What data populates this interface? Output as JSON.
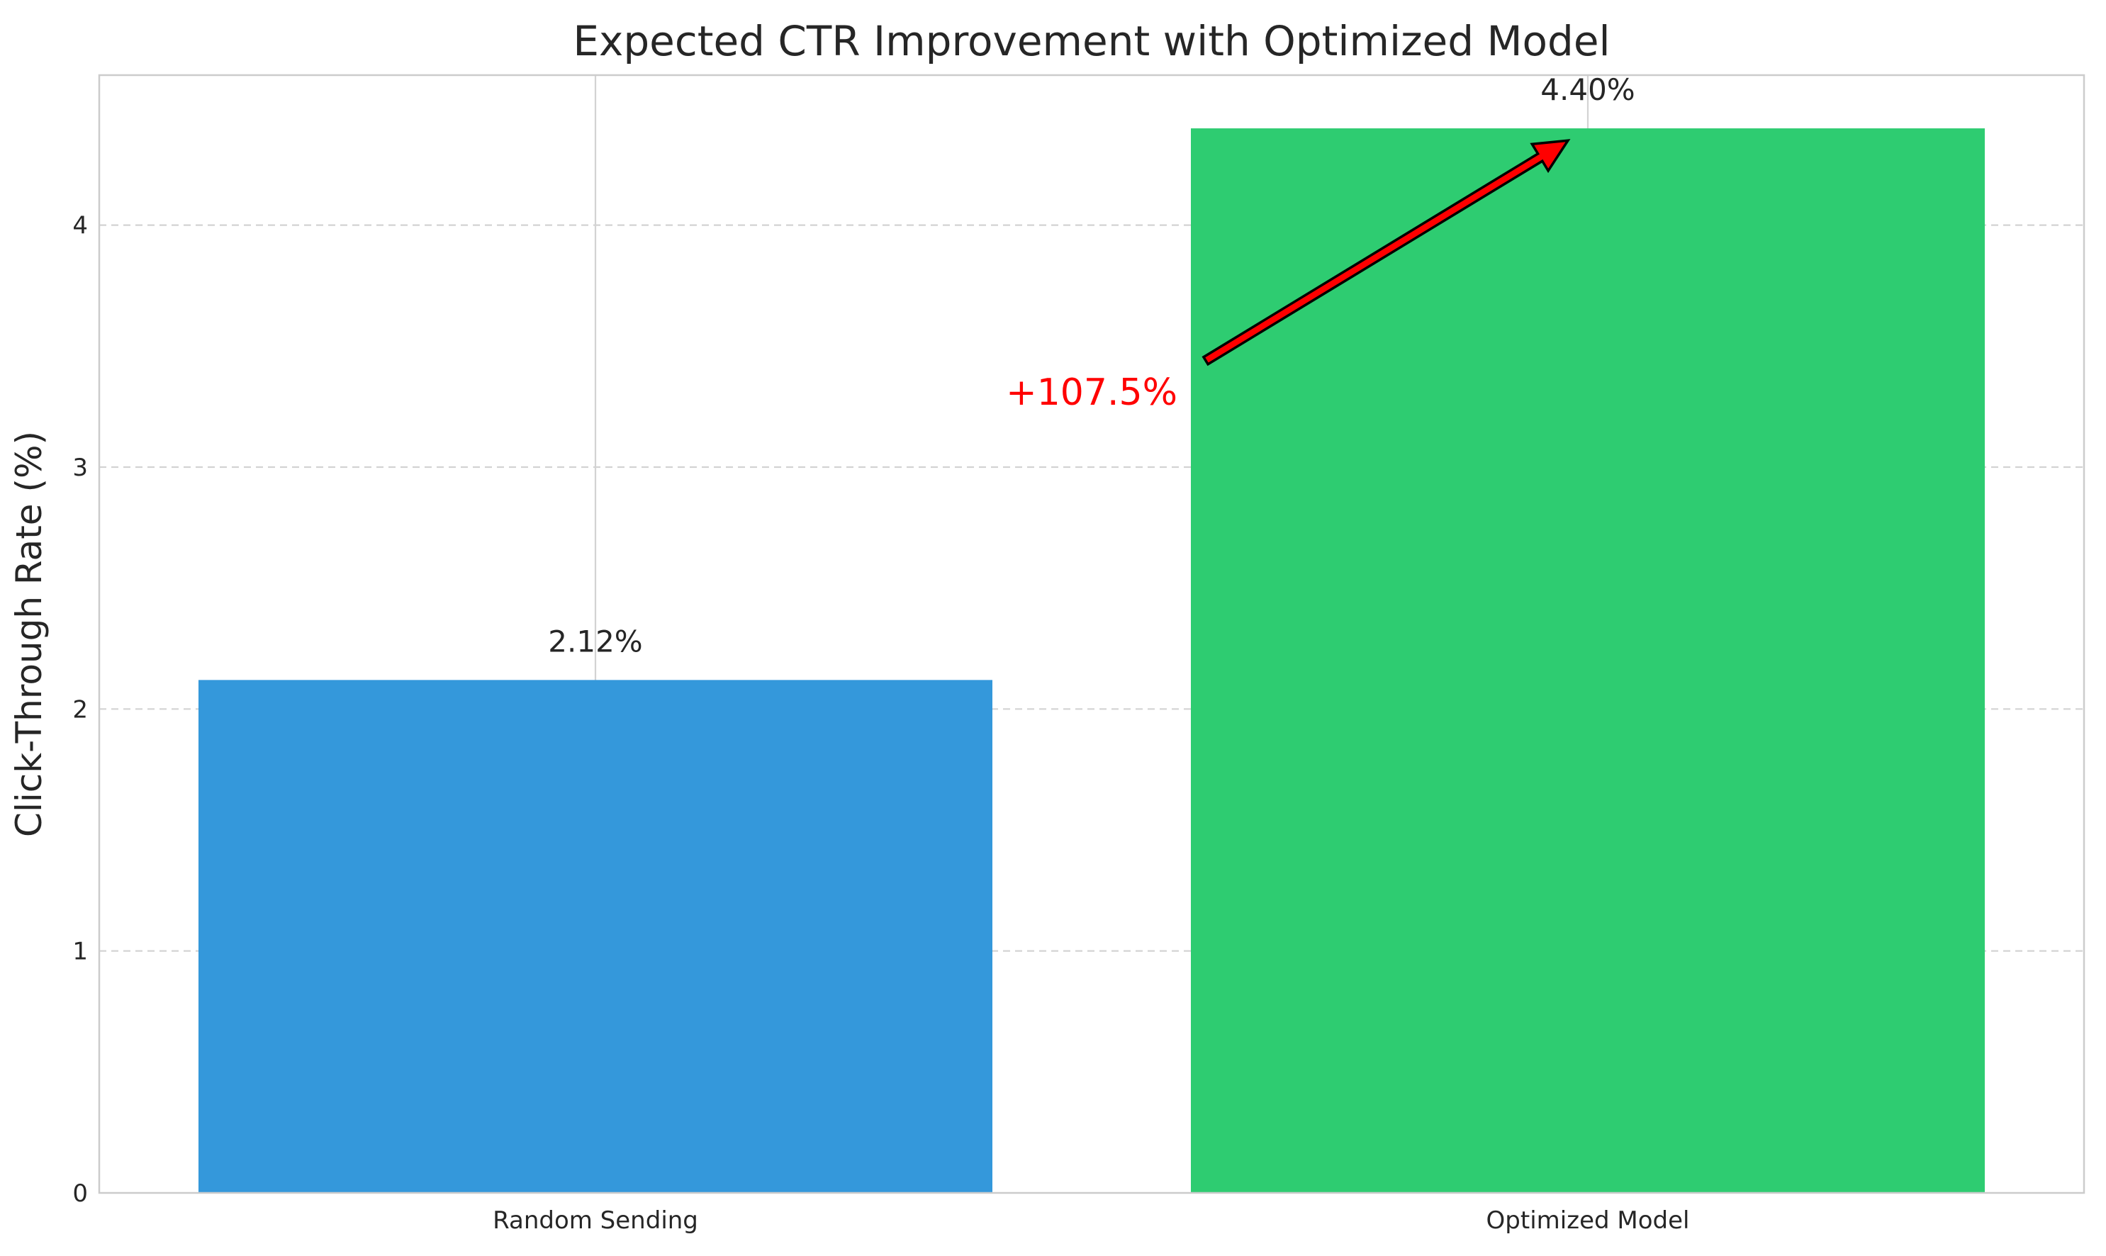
{
  "chart_data": {
    "type": "bar",
    "title": "Expected CTR Improvement with Optimized Model",
    "xlabel": "",
    "ylabel": "Click-Through Rate (%)",
    "categories": [
      "Random Sending",
      "Optimized Model"
    ],
    "values": [
      2.12,
      4.4
    ],
    "data_labels": [
      "2.12%",
      "4.40%"
    ],
    "colors": [
      "#3498db",
      "#2ecc71"
    ],
    "ylim": [
      0,
      4.62
    ],
    "yticks": [
      0,
      1,
      2,
      3,
      4
    ],
    "grid": true,
    "annotation": {
      "text": "+107.5%",
      "color": "#ff0000",
      "arrow_color": "#ff0000"
    }
  }
}
